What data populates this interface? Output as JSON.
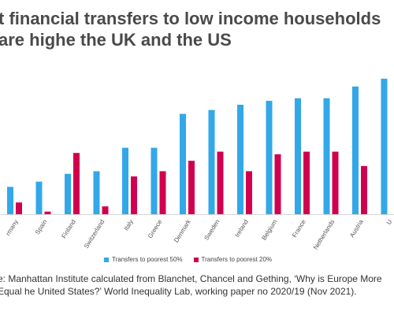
{
  "title": "t financial transfers to low income households are highe the UK and the US",
  "chart_data": {
    "type": "bar",
    "categories": [
      "rmany",
      "Spain",
      "Finland",
      "Switzerland",
      "Italy",
      "Greece",
      "Denmark",
      "Sweden",
      "Ireland",
      "Belgium",
      "France",
      "Netherlands",
      "Austria",
      "U"
    ],
    "series": [
      {
        "name": "Transfers to poorest 50%",
        "values": [
          10.5,
          12.5,
          15.5,
          16.5,
          25.5,
          25.5,
          38.5,
          40.0,
          42.0,
          43.5,
          44.5,
          44.5,
          49.0,
          52.0
        ]
      },
      {
        "name": "Transfers to poorest 20%",
        "values": [
          4.5,
          1.0,
          23.5,
          3.0,
          14.5,
          16.5,
          20.5,
          24.0,
          16.5,
          23.0,
          24.0,
          24.0,
          18.5,
          0
        ]
      }
    ],
    "ylim": [
      0,
      55
    ],
    "grid": false,
    "legend_position": "bottom",
    "colors": [
      "#32A8E8",
      "#D1004F"
    ]
  },
  "legend": [
    {
      "label": "Transfers to poorest 50%",
      "color": "#32A8E8"
    },
    {
      "label": "Transfers to poorest 20%",
      "color": "#D1004F"
    }
  ],
  "source": "e: Manhattan Institute calculated from Blanchet, Chancel and Gething, ‘Why is Europe More Equal he United States?’ World Inequality Lab, working paper no 2020/19 (Nov 2021)."
}
